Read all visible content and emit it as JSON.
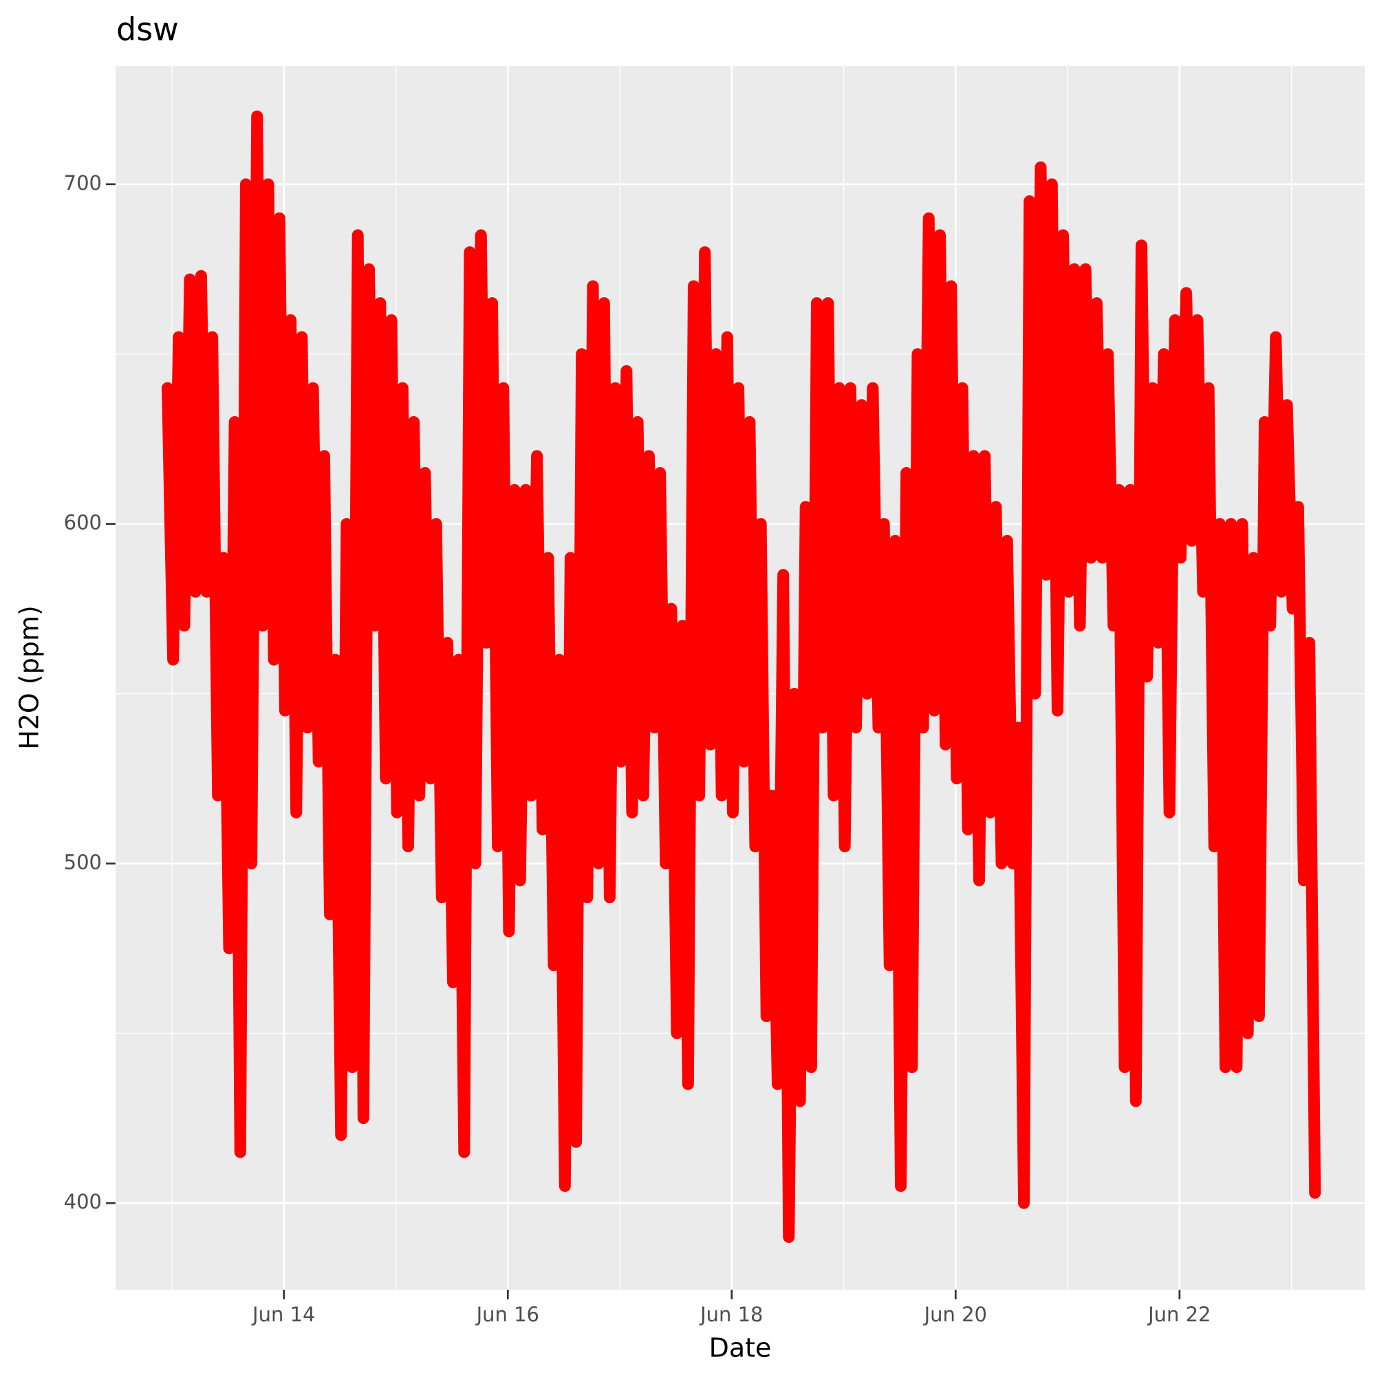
{
  "chart_data": {
    "type": "scatter",
    "title": "dsw",
    "x_label": "Date",
    "y_label": "H2O (ppm)",
    "series": [
      {
        "name": "dsw",
        "color": "#ff0000",
        "x": [
          12.96,
          13.01,
          13.06,
          13.11,
          13.16,
          13.21,
          13.26,
          13.31,
          13.36,
          13.41,
          13.46,
          13.51,
          13.56,
          13.61,
          13.66,
          13.71,
          13.76,
          13.81,
          13.86,
          13.91,
          13.96,
          14.01,
          14.06,
          14.11,
          14.16,
          14.21,
          14.26,
          14.31,
          14.36,
          14.41,
          14.46,
          14.51,
          14.56,
          14.61,
          14.66,
          14.71,
          14.76,
          14.81,
          14.86,
          14.91,
          14.96,
          15.01,
          15.06,
          15.11,
          15.16,
          15.21,
          15.26,
          15.31,
          15.36,
          15.41,
          15.46,
          15.51,
          15.56,
          15.61,
          15.66,
          15.71,
          15.76,
          15.81,
          15.86,
          15.91,
          15.96,
          16.01,
          16.06,
          16.11,
          16.16,
          16.21,
          16.26,
          16.31,
          16.36,
          16.41,
          16.46,
          16.51,
          16.56,
          16.61,
          16.66,
          16.71,
          16.76,
          16.81,
          16.86,
          16.91,
          16.96,
          17.01,
          17.06,
          17.11,
          17.16,
          17.21,
          17.26,
          17.31,
          17.36,
          17.41,
          17.46,
          17.51,
          17.56,
          17.61,
          17.66,
          17.71,
          17.76,
          17.81,
          17.86,
          17.91,
          17.96,
          18.01,
          18.06,
          18.11,
          18.16,
          18.21,
          18.26,
          18.31,
          18.36,
          18.41,
          18.46,
          18.51,
          18.56,
          18.61,
          18.66,
          18.71,
          18.76,
          18.81,
          18.86,
          18.91,
          18.96,
          19.01,
          19.06,
          19.11,
          19.16,
          19.21,
          19.26,
          19.31,
          19.36,
          19.41,
          19.46,
          19.51,
          19.56,
          19.61,
          19.66,
          19.71,
          19.76,
          19.81,
          19.86,
          19.91,
          19.96,
          20.01,
          20.06,
          20.11,
          20.16,
          20.21,
          20.26,
          20.31,
          20.36,
          20.41,
          20.46,
          20.51,
          20.56,
          20.61,
          20.66,
          20.71,
          20.76,
          20.81,
          20.86,
          20.91,
          20.96,
          21.01,
          21.06,
          21.11,
          21.16,
          21.21,
          21.26,
          21.31,
          21.36,
          21.41,
          21.46,
          21.51,
          21.56,
          21.61,
          21.66,
          21.71,
          21.76,
          21.81,
          21.86,
          21.91,
          21.96,
          22.01,
          22.06,
          22.11,
          22.16,
          22.21,
          22.26,
          22.31,
          22.36,
          22.41,
          22.46,
          22.51,
          22.56,
          22.61,
          22.66,
          22.71,
          22.76,
          22.81,
          22.86,
          22.91,
          22.96,
          23.01,
          23.06,
          23.11,
          23.16,
          23.21
        ],
        "values": [
          640,
          560,
          655,
          570,
          672,
          580,
          673,
          580,
          655,
          520,
          590,
          475,
          630,
          415,
          700,
          500,
          720,
          570,
          700,
          560,
          690,
          545,
          660,
          515,
          655,
          540,
          640,
          530,
          620,
          485,
          560,
          420,
          600,
          440,
          685,
          425,
          675,
          570,
          665,
          525,
          660,
          515,
          640,
          505,
          630,
          520,
          615,
          525,
          600,
          490,
          565,
          465,
          560,
          415,
          680,
          500,
          685,
          565,
          665,
          505,
          640,
          480,
          610,
          495,
          610,
          520,
          620,
          510,
          590,
          470,
          560,
          405,
          590,
          418,
          650,
          490,
          670,
          500,
          665,
          490,
          640,
          530,
          645,
          515,
          630,
          520,
          620,
          540,
          615,
          500,
          575,
          450,
          570,
          435,
          670,
          520,
          680,
          535,
          650,
          520,
          655,
          515,
          640,
          530,
          630,
          505,
          600,
          455,
          520,
          435,
          585,
          390,
          550,
          430,
          605,
          440,
          665,
          540,
          665,
          520,
          640,
          505,
          640,
          540,
          635,
          550,
          640,
          540,
          600,
          470,
          595,
          405,
          615,
          440,
          650,
          540,
          690,
          545,
          685,
          535,
          670,
          525,
          640,
          510,
          620,
          495,
          620,
          515,
          605,
          500,
          595,
          500,
          540,
          400,
          695,
          550,
          705,
          585,
          700,
          545,
          685,
          580,
          675,
          570,
          675,
          590,
          665,
          590,
          650,
          570,
          610,
          440,
          610,
          430,
          682,
          555,
          640,
          565,
          650,
          515,
          660,
          590,
          668,
          595,
          660,
          580,
          640,
          505,
          600,
          440,
          600,
          440,
          600,
          450,
          590,
          455,
          630,
          570,
          655,
          580,
          635,
          575,
          605,
          495,
          565,
          403
        ]
      }
    ],
    "xlim": [
      12.496,
      23.654
    ],
    "ylim": [
      374.5,
      734.8
    ],
    "xticks": [
      {
        "value": 14,
        "label": "Jun 14"
      },
      {
        "value": 16,
        "label": "Jun 16"
      },
      {
        "value": 18,
        "label": "Jun 18"
      },
      {
        "value": 20,
        "label": "Jun 20"
      },
      {
        "value": 22,
        "label": "Jun 22"
      }
    ],
    "yticks": [
      400,
      500,
      600,
      700
    ],
    "x_minor_ticks": [
      13,
      15,
      17,
      19,
      21,
      23
    ],
    "y_minor_ticks": [
      450,
      550,
      650
    ],
    "grid": true
  }
}
